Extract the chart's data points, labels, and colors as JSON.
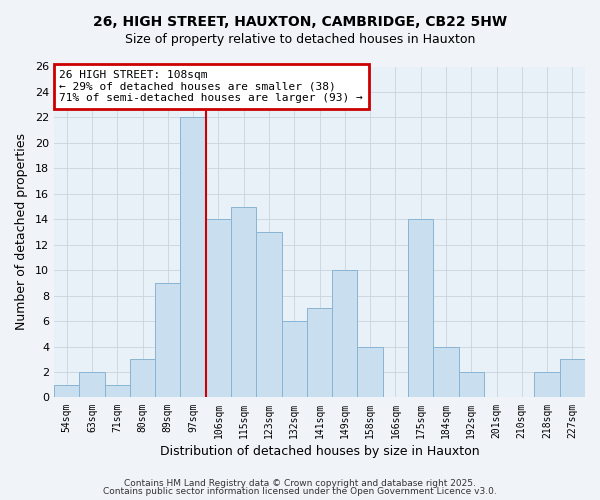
{
  "title1": "26, HIGH STREET, HAUXTON, CAMBRIDGE, CB22 5HW",
  "title2": "Size of property relative to detached houses in Hauxton",
  "xlabel": "Distribution of detached houses by size in Hauxton",
  "ylabel": "Number of detached properties",
  "bar_labels": [
    "54sqm",
    "63sqm",
    "71sqm",
    "80sqm",
    "89sqm",
    "97sqm",
    "106sqm",
    "115sqm",
    "123sqm",
    "132sqm",
    "141sqm",
    "149sqm",
    "158sqm",
    "166sqm",
    "175sqm",
    "184sqm",
    "192sqm",
    "201sqm",
    "210sqm",
    "218sqm",
    "227sqm"
  ],
  "bar_heights": [
    1,
    2,
    1,
    3,
    9,
    22,
    14,
    15,
    13,
    6,
    7,
    10,
    4,
    0,
    14,
    4,
    2,
    0,
    0,
    2,
    3
  ],
  "bar_color": "#c9dff0",
  "bar_edge_color": "#8ab4d4",
  "vline_color": "#cc0000",
  "vline_bar_index": 5,
  "ylim": [
    0,
    26
  ],
  "yticks": [
    0,
    2,
    4,
    6,
    8,
    10,
    12,
    14,
    16,
    18,
    20,
    22,
    24,
    26
  ],
  "annotation_title": "26 HIGH STREET: 108sqm",
  "annotation_line1": "← 29% of detached houses are smaller (38)",
  "annotation_line2": "71% of semi-detached houses are larger (93) →",
  "annotation_box_color": "#ffffff",
  "annotation_box_edge": "#cc0000",
  "footer1": "Contains HM Land Registry data © Crown copyright and database right 2025.",
  "footer2": "Contains public sector information licensed under the Open Government Licence v3.0.",
  "background_color": "#f0f4f8",
  "plot_bg_color": "#e8f0f8",
  "grid_color": "#c8d4e0"
}
